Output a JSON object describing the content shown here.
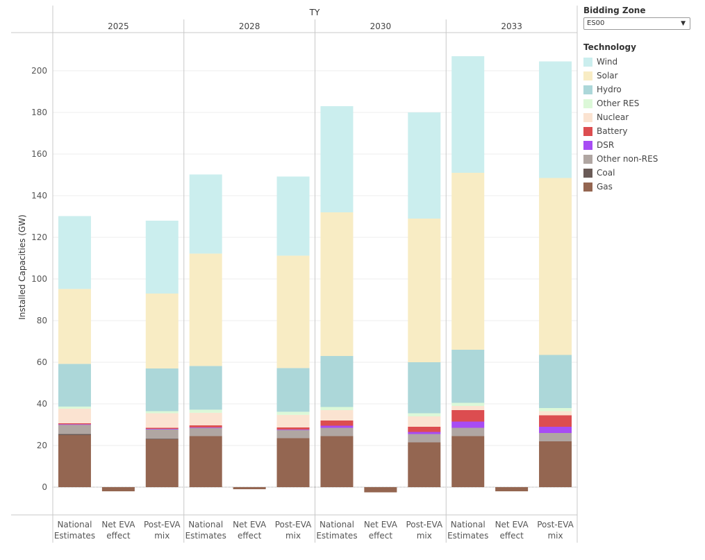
{
  "header": {
    "facet_title": "TY"
  },
  "filter": {
    "label": "Bidding Zone",
    "value": "ES00"
  },
  "legend": {
    "title": "Technology"
  },
  "technologies": [
    {
      "name": "Wind",
      "color": "#cbeeee"
    },
    {
      "name": "Solar",
      "color": "#f8ecc4"
    },
    {
      "name": "Hydro",
      "color": "#acd7d9"
    },
    {
      "name": "Other RES",
      "color": "#dcf8d8"
    },
    {
      "name": "Nuclear",
      "color": "#fbe3d1"
    },
    {
      "name": "Battery",
      "color": "#dc4d50"
    },
    {
      "name": "DSR",
      "color": "#a74cf4"
    },
    {
      "name": "Other non-RES",
      "color": "#b0a6a2"
    },
    {
      "name": "Coal",
      "color": "#6a5b57"
    },
    {
      "name": "Gas",
      "color": "#946651"
    }
  ],
  "chart_data": {
    "type": "bar",
    "stacked": true,
    "title": "",
    "ylabel": "Installed Capacities (GW)",
    "ylim": [
      -10,
      215
    ],
    "yticks": [
      0,
      20,
      40,
      60,
      80,
      100,
      120,
      140,
      160,
      180,
      200
    ],
    "facets": [
      "2025",
      "2028",
      "2030",
      "2033"
    ],
    "categories": [
      [
        "National",
        "Estimates"
      ],
      [
        "Net EVA",
        "effect"
      ],
      [
        "Post-EVA",
        "mix"
      ]
    ],
    "series": [
      {
        "name": "Gas",
        "values": [
          [
            25,
            -2,
            23
          ],
          [
            24.5,
            -1,
            23.5
          ],
          [
            24.5,
            -2.5,
            21.5
          ],
          [
            24.5,
            -2,
            22
          ]
        ]
      },
      {
        "name": "Coal",
        "values": [
          [
            0.5,
            0,
            0.3
          ],
          [
            0,
            0,
            0
          ],
          [
            0,
            0,
            0
          ],
          [
            0,
            0,
            0
          ]
        ]
      },
      {
        "name": "Other non-RES",
        "values": [
          [
            4.5,
            0,
            4.5
          ],
          [
            4,
            0,
            4
          ],
          [
            4,
            0,
            4
          ],
          [
            4,
            0,
            4
          ]
        ]
      },
      {
        "name": "DSR",
        "values": [
          [
            0.2,
            0,
            0.2
          ],
          [
            0.2,
            0,
            0.2
          ],
          [
            1,
            0,
            1
          ],
          [
            3,
            0,
            3
          ]
        ]
      },
      {
        "name": "Battery",
        "values": [
          [
            0.5,
            0,
            0.5
          ],
          [
            1,
            0,
            1
          ],
          [
            2.5,
            0,
            2.5
          ],
          [
            5.5,
            0,
            5.5
          ]
        ]
      },
      {
        "name": "Nuclear",
        "values": [
          [
            7,
            0,
            7
          ],
          [
            6,
            0,
            6
          ],
          [
            5,
            0,
            5
          ],
          [
            2,
            0,
            2
          ]
        ]
      },
      {
        "name": "Other RES",
        "values": [
          [
            1,
            0,
            1
          ],
          [
            1.5,
            0,
            1.5
          ],
          [
            1.5,
            0,
            1.5
          ],
          [
            1.5,
            0,
            1.5
          ]
        ]
      },
      {
        "name": "Hydro",
        "values": [
          [
            20.5,
            0,
            20.5
          ],
          [
            21,
            0,
            21
          ],
          [
            24.5,
            0,
            24.5
          ],
          [
            25.5,
            0,
            25.5
          ]
        ]
      },
      {
        "name": "Solar",
        "values": [
          [
            36,
            0,
            36
          ],
          [
            54,
            0,
            54
          ],
          [
            69,
            0,
            69
          ],
          [
            85,
            0,
            85
          ]
        ]
      },
      {
        "name": "Wind",
        "values": [
          [
            35,
            0,
            35
          ],
          [
            38,
            0,
            38
          ],
          [
            51,
            0,
            51
          ],
          [
            56,
            0,
            56
          ]
        ]
      }
    ]
  }
}
